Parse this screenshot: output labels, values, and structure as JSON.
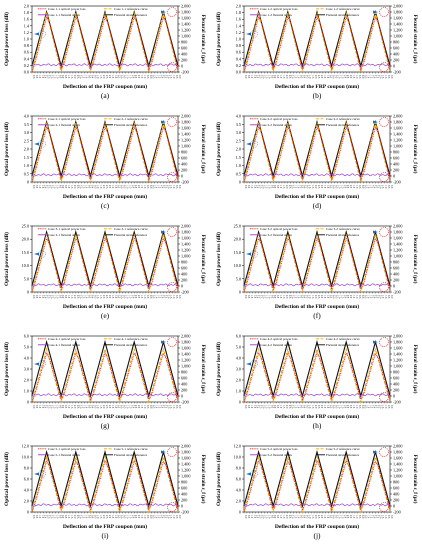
{
  "figure": {
    "xlabel": "Deflection of the FRP coupon (mm)",
    "ylabel_left": "Optical power loss (dB)",
    "ylabel_right": "Flexural strain ε_f (με)",
    "x_tick_labels": [
      "0.0",
      "0.5",
      "1.0",
      "1.5",
      "2.0",
      "2.5",
      "2.0",
      "1.5",
      "1.0",
      "0.5",
      "0.0",
      "0.5",
      "1.0",
      "1.5",
      "2.0",
      "2.5",
      "2.0",
      "1.5",
      "1.0",
      "0.5",
      "0.0",
      "0.5",
      "1.0",
      "1.5",
      "2.0",
      "2.5",
      "2.0",
      "1.5",
      "1.0",
      "0.5",
      "0.0",
      "0.5",
      "1.0",
      "1.5",
      "2.0",
      "2.5",
      "2.0",
      "1.5",
      "1.0",
      "0.5",
      "0.0",
      "0.5",
      "1.0",
      "1.5",
      "2.0",
      "2.5",
      "2.0",
      "1.5",
      "1.0",
      "0.5",
      "0.0"
    ],
    "right_ticks": [
      "-200",
      "0",
      "200",
      "400",
      "600",
      "800",
      "1,000",
      "1,200",
      "1,400",
      "1,600",
      "1,800",
      "2,000"
    ],
    "colors": {
      "optical": "#e8141c",
      "reference": "#f2a900",
      "strain": "#9b3fd1",
      "strain_ref": "#111111",
      "marker": "#e8141c",
      "arrow": "#1f6fc4"
    }
  },
  "chart_data": [
    {
      "type": "line",
      "panel_label": "(a)",
      "case": "1-1",
      "left_ticks": [
        "0.0",
        "0.2",
        "0.4",
        "0.6",
        "0.8",
        "1.0",
        "1.2",
        "1.4",
        "1.6",
        "1.8",
        "2.0"
      ],
      "ylim_left": [
        0,
        2.0
      ],
      "ylim_right": [
        -200,
        2000
      ],
      "peak_power_loss": 1.8,
      "peak_strain": 1800,
      "legend": [
        "Case 1-1 optical power loss",
        "Case 1-1 reference curve",
        "Case 1-1 flexural strain",
        "Flexural strain reference"
      ]
    },
    {
      "type": "line",
      "panel_label": "(b)",
      "case": "1-2",
      "left_ticks": [
        "0.0",
        "0.2",
        "0.4",
        "0.6",
        "0.8",
        "1.0",
        "1.2",
        "1.4",
        "1.6",
        "1.8",
        "2.0"
      ],
      "ylim_left": [
        0,
        2.0
      ],
      "ylim_right": [
        -200,
        2000
      ],
      "peak_power_loss": 1.8,
      "peak_strain": 1800,
      "legend": [
        "Case 1-2 optical power loss",
        "Case 1-2 reference curve",
        "Case 1-2 flexural strain",
        "Flexural strain reference"
      ]
    },
    {
      "type": "line",
      "panel_label": "(c)",
      "case": "2-1",
      "left_ticks": [
        "0",
        "0.5",
        "1.0",
        "1.5",
        "2.0",
        "2.5",
        "3.0",
        "3.5",
        "4.0"
      ],
      "ylim_left": [
        0,
        4.0
      ],
      "ylim_right": [
        -200,
        2000
      ],
      "peak_power_loss": 3.6,
      "peak_strain": 1800,
      "legend": [
        "Case 2-1 optical power loss",
        "Case 2-1 reference curve",
        "Case 2-1 flexural strain",
        "Flexural strain reference"
      ]
    },
    {
      "type": "line",
      "panel_label": "(d)",
      "case": "2-2",
      "left_ticks": [
        "0",
        "0.5",
        "1.0",
        "1.5",
        "2.0",
        "2.5",
        "3.0",
        "3.5",
        "4.0"
      ],
      "ylim_left": [
        0,
        4.0
      ],
      "ylim_right": [
        -200,
        2000
      ],
      "peak_power_loss": 3.6,
      "peak_strain": 1800,
      "legend": [
        "Case 2-2 optical power loss",
        "Case 2-2 reference curve",
        "Case 2-2 flexural strain",
        "Flexural strain reference"
      ]
    },
    {
      "type": "line",
      "panel_label": "(e)",
      "case": "3-1",
      "left_ticks": [
        "0",
        "5.0",
        "10.0",
        "15.0",
        "20.0",
        "25.0"
      ],
      "ylim_left": [
        0,
        25.0
      ],
      "ylim_right": [
        -200,
        2000
      ],
      "peak_power_loss": 22.0,
      "peak_strain": 1800,
      "legend": [
        "Case 3-1 optical power loss",
        "Case 3-1 reference curve",
        "Case 3-1 flexural strain",
        "Flexural strain reference"
      ]
    },
    {
      "type": "line",
      "panel_label": "(f)",
      "case": "3-2",
      "left_ticks": [
        "0",
        "5.0",
        "10.0",
        "15.0",
        "20.0",
        "25.0"
      ],
      "ylim_left": [
        0,
        25.0
      ],
      "ylim_right": [
        -200,
        2000
      ],
      "peak_power_loss": 22.0,
      "peak_strain": 1800,
      "legend": [
        "Case 3-2 optical power loss",
        "Case 3-2 reference curve",
        "Case 3-2 flexural strain",
        "Flexural strain reference"
      ]
    },
    {
      "type": "line",
      "panel_label": "(g)",
      "case": "4-1",
      "left_ticks": [
        "0",
        "1.0",
        "2.0",
        "3.0",
        "4.0",
        "5.0",
        "6.0"
      ],
      "ylim_left": [
        0,
        6.0
      ],
      "ylim_right": [
        -200,
        2000
      ],
      "peak_power_loss": 4.8,
      "peak_strain": 1800,
      "legend": [
        "Case 4-1 optical power loss",
        "Case 4-1 reference curve",
        "Case 4-1 flexural strain",
        "Flexural strain reference"
      ]
    },
    {
      "type": "line",
      "panel_label": "(h)",
      "case": "4-2",
      "left_ticks": [
        "0",
        "1.0",
        "2.0",
        "3.0",
        "4.0",
        "5.0",
        "6.0"
      ],
      "ylim_left": [
        0,
        6.0
      ],
      "ylim_right": [
        -200,
        2000
      ],
      "peak_power_loss": 4.8,
      "peak_strain": 1800,
      "legend": [
        "Case 4-2 optical power loss",
        "Case 4-2 reference curve",
        "Case 4-2 flexural strain",
        "Flexural strain reference"
      ]
    },
    {
      "type": "line",
      "panel_label": "(i)",
      "case": "5-1",
      "left_ticks": [
        "0",
        "2.0",
        "4.0",
        "6.0",
        "8.0",
        "10.0",
        "12.0"
      ],
      "ylim_left": [
        0,
        12.0
      ],
      "ylim_right": [
        -200,
        2000
      ],
      "peak_power_loss": 10.0,
      "peak_strain": 1800,
      "legend": [
        "Case 5-1 optical power loss",
        "Case 5-1 reference curve",
        "Case 5-1 flexural strain",
        "Flexural strain reference"
      ]
    },
    {
      "type": "line",
      "panel_label": "(j)",
      "case": "5-2",
      "left_ticks": [
        "0",
        "2.0",
        "4.0",
        "6.0",
        "8.0",
        "10.0",
        "12.0"
      ],
      "ylim_left": [
        0,
        12.0
      ],
      "ylim_right": [
        -200,
        2000
      ],
      "peak_power_loss": 10.0,
      "peak_strain": 1800,
      "legend": [
        "Case 5-2 optical power loss",
        "Case 5-2 reference curve",
        "Case 5-2 flexural strain",
        "Flexural strain reference"
      ]
    }
  ]
}
